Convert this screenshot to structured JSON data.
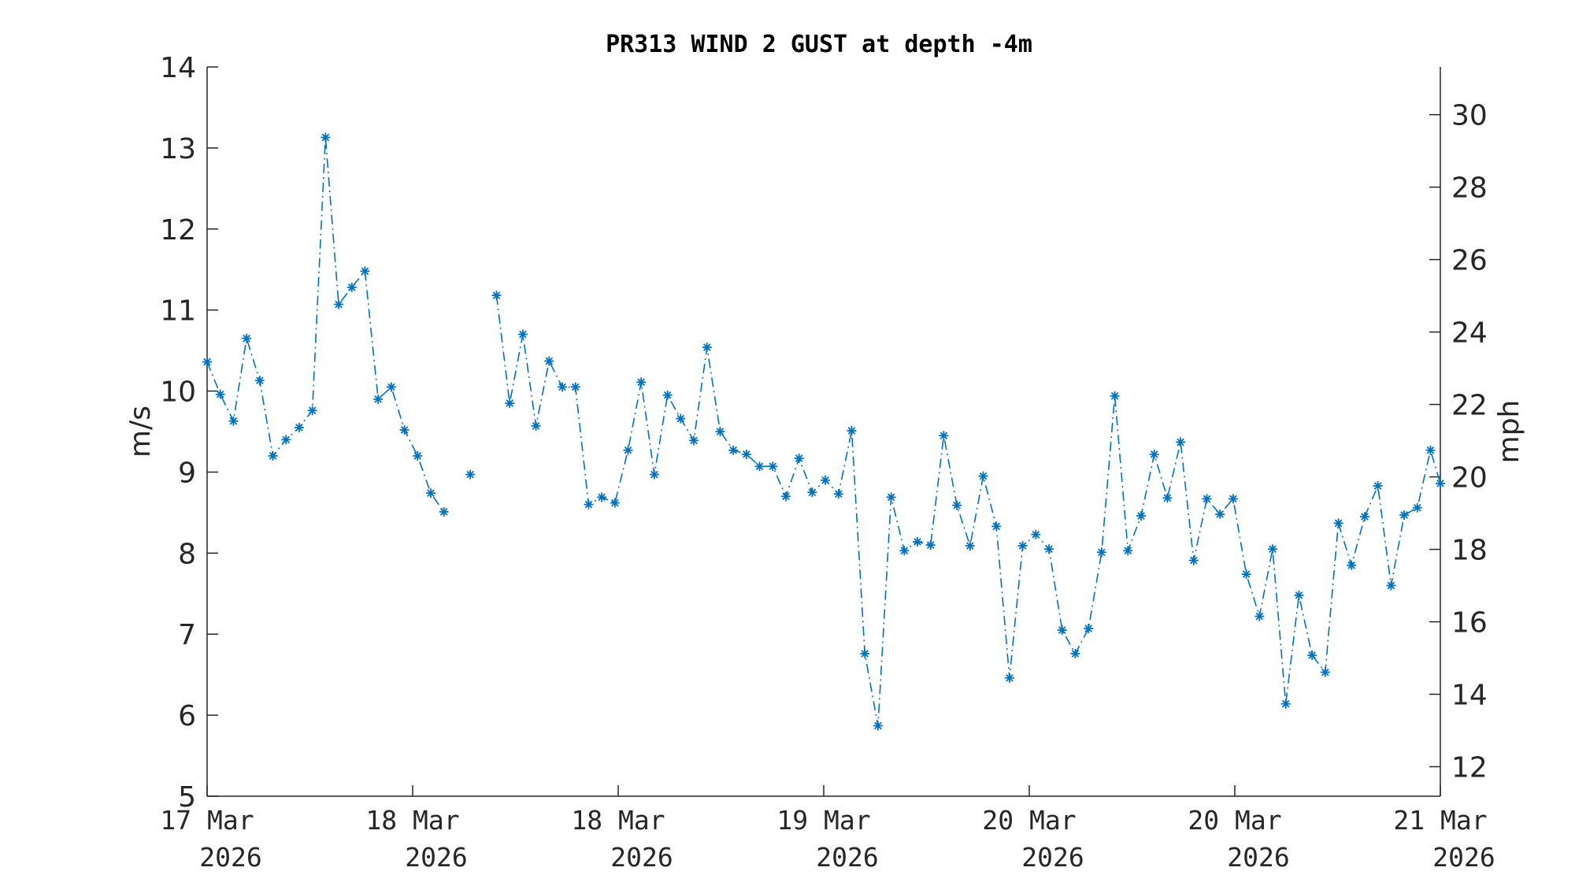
{
  "chart_data": {
    "type": "line",
    "title": "PR313 WIND 2 GUST at depth -4m",
    "ylabel": "m/s",
    "ylabel_right": "mph",
    "ylim": [
      5,
      14
    ],
    "ylim_right": [
      11.185,
      31.318
    ],
    "xlim": [
      0,
      6
    ],
    "yticks": [
      5,
      6,
      7,
      8,
      9,
      10,
      11,
      12,
      13,
      14
    ],
    "yticks_right": [
      12,
      14,
      16,
      18,
      20,
      22,
      24,
      26,
      28,
      30
    ],
    "xticks": [
      {
        "x": 0,
        "line1": "17 Mar",
        "line2": "2026"
      },
      {
        "x": 1,
        "line1": "18 Mar",
        "line2": "2026"
      },
      {
        "x": 2,
        "line1": "18 Mar",
        "line2": "2026"
      },
      {
        "x": 3,
        "line1": "19 Mar",
        "line2": "2026"
      },
      {
        "x": 4,
        "line1": "20 Mar",
        "line2": "2026"
      },
      {
        "x": 5,
        "line1": "20 Mar",
        "line2": "2026"
      },
      {
        "x": 6,
        "line1": "21 Mar",
        "line2": "2026"
      }
    ],
    "series": [
      {
        "color": "#0072BD",
        "marker": "asterisk",
        "linestyle": "dash-dot",
        "points": [
          [
            0.0,
            10.36
          ],
          [
            0.064,
            9.96
          ],
          [
            0.128,
            9.63
          ],
          [
            0.192,
            10.65
          ],
          [
            0.256,
            10.13
          ],
          [
            0.32,
            9.2
          ],
          [
            0.384,
            9.4
          ],
          [
            0.448,
            9.55
          ],
          [
            0.512,
            9.76
          ],
          [
            0.576,
            13.13
          ],
          [
            0.64,
            11.07
          ],
          [
            0.704,
            11.28
          ],
          [
            0.768,
            11.48
          ],
          [
            0.832,
            9.9
          ],
          [
            0.896,
            10.05
          ],
          [
            0.96,
            9.52
          ],
          [
            1.024,
            9.2
          ],
          [
            1.088,
            8.74
          ],
          [
            1.152,
            8.51
          ],
          null,
          [
            1.28,
            8.97
          ],
          null,
          [
            1.408,
            11.18
          ],
          [
            1.472,
            9.85
          ],
          [
            1.536,
            10.7
          ],
          [
            1.6,
            9.57
          ],
          [
            1.664,
            10.37
          ],
          [
            1.728,
            10.05
          ],
          [
            1.792,
            10.05
          ],
          [
            1.856,
            8.6
          ],
          [
            1.92,
            8.69
          ],
          [
            1.984,
            8.62
          ],
          [
            2.048,
            9.27
          ],
          [
            2.112,
            10.11
          ],
          [
            2.176,
            8.97
          ],
          [
            2.24,
            9.95
          ],
          [
            2.304,
            9.66
          ],
          [
            2.368,
            9.39
          ],
          [
            2.432,
            10.54
          ],
          [
            2.496,
            9.5
          ],
          [
            2.56,
            9.27
          ],
          [
            2.624,
            9.22
          ],
          [
            2.688,
            9.07
          ],
          [
            2.752,
            9.07
          ],
          [
            2.816,
            8.7
          ],
          [
            2.88,
            9.17
          ],
          [
            2.944,
            8.75
          ],
          [
            3.008,
            8.9
          ],
          [
            3.072,
            8.73
          ],
          [
            3.136,
            9.51
          ],
          [
            3.2,
            6.76
          ],
          [
            3.264,
            5.87
          ],
          [
            3.328,
            8.69
          ],
          [
            3.392,
            8.03
          ],
          [
            3.456,
            8.14
          ],
          [
            3.52,
            8.1
          ],
          [
            3.584,
            9.45
          ],
          [
            3.648,
            8.59
          ],
          [
            3.712,
            8.09
          ],
          [
            3.776,
            8.95
          ],
          [
            3.84,
            8.33
          ],
          [
            3.904,
            6.46
          ],
          [
            3.968,
            8.09
          ],
          [
            4.032,
            8.23
          ],
          [
            4.096,
            8.05
          ],
          [
            4.16,
            7.05
          ],
          [
            4.224,
            6.76
          ],
          [
            4.288,
            7.07
          ],
          [
            4.352,
            8.01
          ],
          [
            4.416,
            9.94
          ],
          [
            4.48,
            8.03
          ],
          [
            4.544,
            8.46
          ],
          [
            4.608,
            9.22
          ],
          [
            4.672,
            8.68
          ],
          [
            4.736,
            9.37
          ],
          [
            4.8,
            7.91
          ],
          [
            4.864,
            8.67
          ],
          [
            4.928,
            8.48
          ],
          [
            4.992,
            8.67
          ],
          [
            5.056,
            7.74
          ],
          [
            5.12,
            7.22
          ],
          [
            5.184,
            8.05
          ],
          [
            5.248,
            6.14
          ],
          [
            5.312,
            7.48
          ],
          [
            5.376,
            6.74
          ],
          [
            5.44,
            6.53
          ],
          [
            5.504,
            8.37
          ],
          [
            5.568,
            7.85
          ],
          [
            5.632,
            8.45
          ],
          [
            5.696,
            8.83
          ],
          [
            5.76,
            7.6
          ],
          [
            5.824,
            8.47
          ],
          [
            5.888,
            8.56
          ],
          [
            5.952,
            9.27
          ],
          [
            6.0,
            8.86
          ]
        ]
      }
    ]
  }
}
